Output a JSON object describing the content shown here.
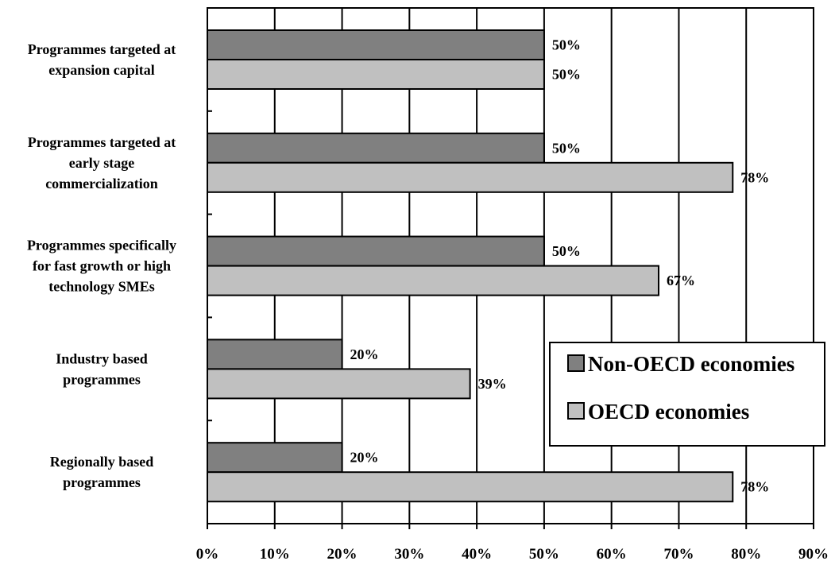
{
  "chart_data": {
    "type": "bar",
    "orientation": "horizontal",
    "categories": [
      [
        "Programmes targeted at",
        "expansion capital"
      ],
      [
        "Programmes targeted at",
        "early stage",
        "commercialization"
      ],
      [
        "Programmes specifically",
        "for fast growth or high",
        "technology SMEs"
      ],
      [
        "Industry based",
        "programmes"
      ],
      [
        "Regionally based",
        "programmes"
      ]
    ],
    "series": [
      {
        "name": "Non-OECD economies",
        "color": "#808080",
        "values": [
          50,
          50,
          50,
          20,
          20
        ],
        "labels": [
          "50%",
          "50%",
          "50%",
          "20%",
          "20%"
        ]
      },
      {
        "name": "OECD economies",
        "color": "#c0c0c0",
        "values": [
          50,
          78,
          67,
          39,
          78
        ],
        "labels": [
          "50%",
          "78%",
          "67%",
          "39%",
          "78%"
        ]
      }
    ],
    "x_ticks": [
      "0%",
      "10%",
      "20%",
      "30%",
      "40%",
      "50%",
      "60%",
      "70%",
      "80%",
      "90%"
    ],
    "xlim": [
      0,
      90
    ],
    "grid": "vertical",
    "legend_position": "right"
  }
}
